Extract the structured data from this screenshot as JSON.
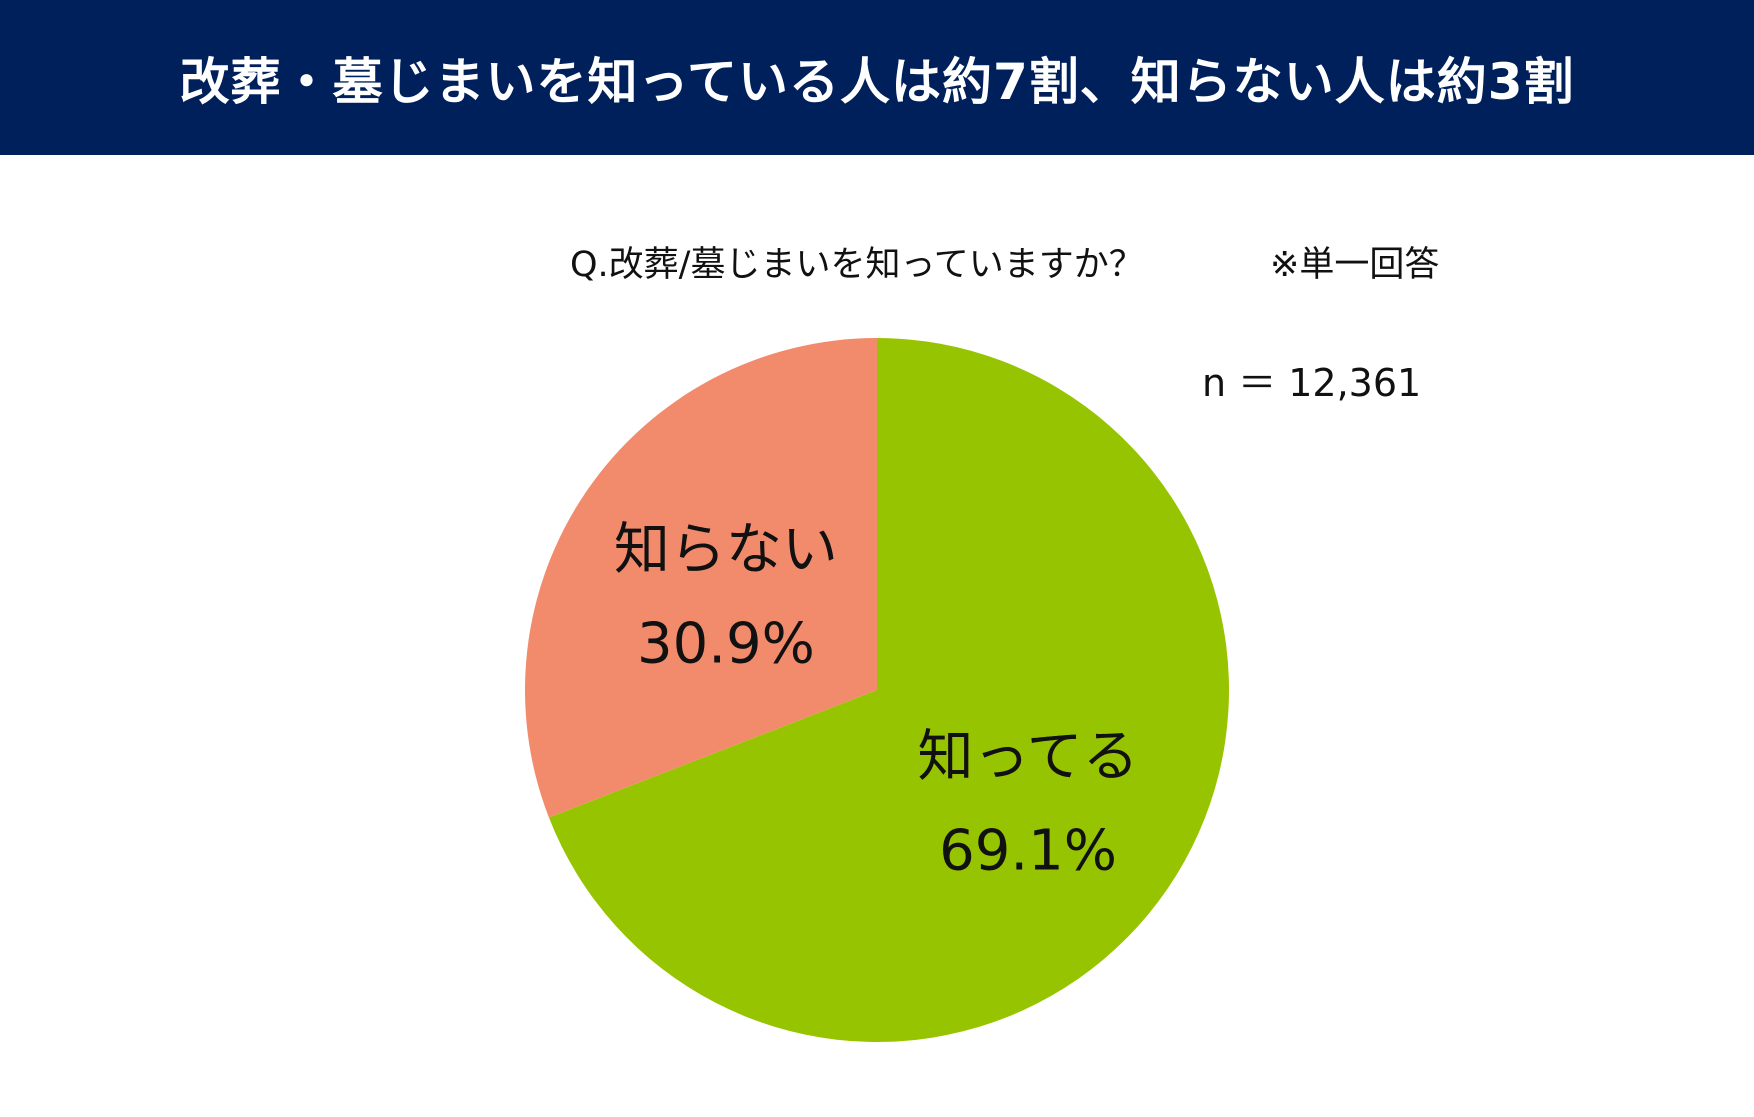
{
  "header": {
    "title": "改葬・墓じまいを知っている人は約7割、知らない人は約3割"
  },
  "question": "Q.改葬/墓じまいを知っていますか？",
  "note": "※単一回答",
  "sample_size": "n ＝ 12,361",
  "chart_data": {
    "type": "pie",
    "title": "",
    "categories": [
      "知ってる",
      "知らない"
    ],
    "values": [
      69.1,
      30.9
    ],
    "value_labels": [
      "69.1%",
      "30.9%"
    ],
    "unit": "%",
    "colors": [
      "#97c400",
      "#f28b6c"
    ],
    "start_angle_deg": 0,
    "direction": "clockwise",
    "legend": "none"
  }
}
